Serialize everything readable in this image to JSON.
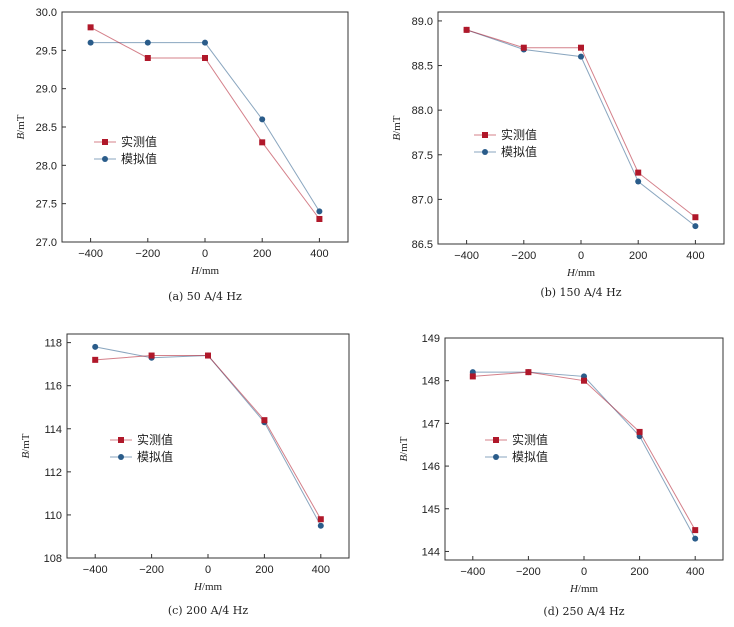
{
  "chart_data": [
    {
      "type": "line",
      "caption": "(a) 50 A/4 Hz",
      "xlabel_var": "H",
      "xlabel_unit": "/mm",
      "ylabel_var": "B",
      "ylabel_unit": "/mT",
      "x": [
        -400,
        -200,
        0,
        200,
        400
      ],
      "xticks": [
        -400,
        -200,
        0,
        200,
        400
      ],
      "xlim": [
        -500,
        500
      ],
      "yticks": [
        "27.0",
        "27.5",
        "28.0",
        "28.5",
        "29.0",
        "29.5",
        "30.0"
      ],
      "ylim": [
        27.0,
        30.0
      ],
      "legend_position": "center-left",
      "series": [
        {
          "name": "实测值",
          "values": [
            29.8,
            29.4,
            29.4,
            28.3,
            27.3
          ],
          "color": "#b0182a"
        },
        {
          "name": "模拟值",
          "values": [
            29.6,
            29.6,
            29.6,
            28.6,
            27.4
          ],
          "color": "#2a5c8a"
        }
      ]
    },
    {
      "type": "line",
      "caption": "(b) 150 A/4 Hz",
      "xlabel_var": "H",
      "xlabel_unit": "/mm",
      "ylabel_var": "B",
      "ylabel_unit": "/mT",
      "x": [
        -400,
        -200,
        0,
        200,
        400
      ],
      "xticks": [
        -400,
        -200,
        0,
        200,
        400
      ],
      "xlim": [
        -500,
        500
      ],
      "yticks": [
        "86.5",
        "87.0",
        "87.5",
        "88.0",
        "88.5",
        "89.0"
      ],
      "ylim": [
        86.5,
        89.1
      ],
      "legend_position": "center-left",
      "series": [
        {
          "name": "实测值",
          "values": [
            88.9,
            88.7,
            88.7,
            87.3,
            86.8
          ],
          "color": "#b0182a"
        },
        {
          "name": "模拟值",
          "values": [
            88.9,
            88.68,
            88.6,
            87.2,
            86.7
          ],
          "color": "#2a5c8a"
        }
      ]
    },
    {
      "type": "line",
      "caption": "(c) 200 A/4 Hz",
      "xlabel_var": "H",
      "xlabel_unit": "/mm",
      "ylabel_var": "B",
      "ylabel_unit": "/mT",
      "x": [
        -400,
        -200,
        0,
        200,
        400
      ],
      "xticks": [
        -400,
        -200,
        0,
        200,
        400
      ],
      "xlim": [
        -500,
        500
      ],
      "yticks": [
        "108",
        "110",
        "112",
        "114",
        "116",
        "118"
      ],
      "ylim": [
        108,
        118.4
      ],
      "legend_position": "center-left",
      "series": [
        {
          "name": "实测值",
          "values": [
            117.2,
            117.4,
            117.4,
            114.4,
            109.8
          ],
          "color": "#b0182a"
        },
        {
          "name": "模拟值",
          "values": [
            117.8,
            117.3,
            117.4,
            114.3,
            109.5
          ],
          "color": "#2a5c8a"
        }
      ]
    },
    {
      "type": "line",
      "caption": "(d) 250 A/4 Hz",
      "xlabel_var": "H",
      "xlabel_unit": "/mm",
      "ylabel_var": "B",
      "ylabel_unit": "/mT",
      "x": [
        -400,
        -200,
        0,
        200,
        400
      ],
      "xticks": [
        -400,
        -200,
        0,
        200,
        400
      ],
      "xlim": [
        -500,
        500
      ],
      "yticks": [
        "144",
        "145",
        "146",
        "147",
        "148",
        "149"
      ],
      "ylim": [
        143.8,
        149
      ],
      "legend_position": "center-left",
      "series": [
        {
          "name": "实测值",
          "values": [
            148.1,
            148.2,
            148.0,
            146.8,
            144.5
          ],
          "color": "#b0182a"
        },
        {
          "name": "模拟值",
          "values": [
            148.2,
            148.2,
            148.1,
            146.7,
            144.3
          ],
          "color": "#2a5c8a"
        }
      ]
    }
  ]
}
